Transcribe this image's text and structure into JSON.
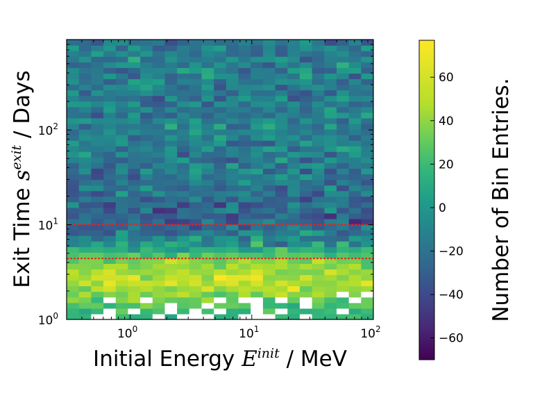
{
  "chart_data": {
    "type": "heatmap",
    "xlabel": {
      "prefix": "Initial Energy ",
      "symbol": "E",
      "superscript": "init",
      "suffix": " / MeV"
    },
    "ylabel": {
      "prefix": "Exit Time ",
      "symbol": "s",
      "superscript": "exit",
      "suffix": " / Days"
    },
    "x_scale": "log",
    "y_scale": "log",
    "xlim": [
      0.3,
      100
    ],
    "ylim": [
      1,
      900
    ],
    "x_ticks": [
      {
        "value": 1,
        "base": "10",
        "exp": "0"
      },
      {
        "value": 10,
        "base": "10",
        "exp": "1"
      },
      {
        "value": 100,
        "base": "10",
        "exp": "2"
      }
    ],
    "y_ticks": [
      {
        "value": 1,
        "base": "10",
        "exp": "0"
      },
      {
        "value": 10,
        "base": "10",
        "exp": "1"
      },
      {
        "value": 100,
        "base": "10",
        "exp": "2"
      }
    ],
    "reference_lines": [
      {
        "orientation": "horizontal",
        "y": 10,
        "color": "#e8231e",
        "style": "dashed"
      },
      {
        "orientation": "horizontal",
        "y": 4.4,
        "color": "#e8231e",
        "style": "dashed"
      }
    ],
    "colorbar": {
      "label": "Number of Bin Entries.",
      "colormap": "viridis",
      "range": [
        -70,
        77
      ],
      "ticks": [
        60,
        40,
        20,
        0,
        -20,
        -40,
        -60
      ],
      "tick_labels": [
        "60",
        "40",
        "20",
        "0",
        "−20",
        "−40",
        "−60"
      ]
    },
    "grid": {
      "x_bins": 25,
      "y_bins": 50,
      "value_range": [
        -70,
        77
      ],
      "profile_by_exit_time": [
        {
          "y": 1.0,
          "mean": 22,
          "note": "sparse, many empty bins"
        },
        {
          "y": 1.4,
          "mean": 35
        },
        {
          "y": 2.0,
          "mean": 55
        },
        {
          "y": 3.0,
          "mean": 62
        },
        {
          "y": 4.4,
          "mean": 45
        },
        {
          "y": 6.0,
          "mean": 10
        },
        {
          "y": 10.0,
          "mean": -25
        },
        {
          "y": 30.0,
          "mean": -12
        },
        {
          "y": 100.0,
          "mean": -8
        },
        {
          "y": 900.0,
          "mean": -8
        }
      ]
    }
  }
}
